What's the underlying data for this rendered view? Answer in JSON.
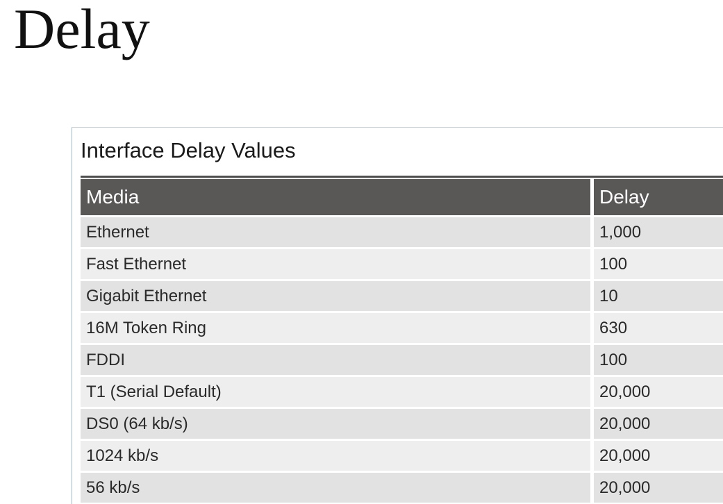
{
  "slide": {
    "title": "Delay"
  },
  "table": {
    "caption": "Interface Delay Values",
    "headers": {
      "media": "Media",
      "delay": "Delay"
    },
    "rows": [
      {
        "media": "Ethernet",
        "delay": "1,000"
      },
      {
        "media": "Fast Ethernet",
        "delay": "100"
      },
      {
        "media": "Gigabit Ethernet",
        "delay": "10"
      },
      {
        "media": "16M Token Ring",
        "delay": "630"
      },
      {
        "media": "FDDI",
        "delay": "100"
      },
      {
        "media": "T1 (Serial Default)",
        "delay": "20,000"
      },
      {
        "media": "DS0 (64 kb/s)",
        "delay": "20,000"
      },
      {
        "media": "1024 kb/s",
        "delay": "20,000"
      },
      {
        "media": "56 kb/s",
        "delay": "20,000"
      }
    ]
  }
}
